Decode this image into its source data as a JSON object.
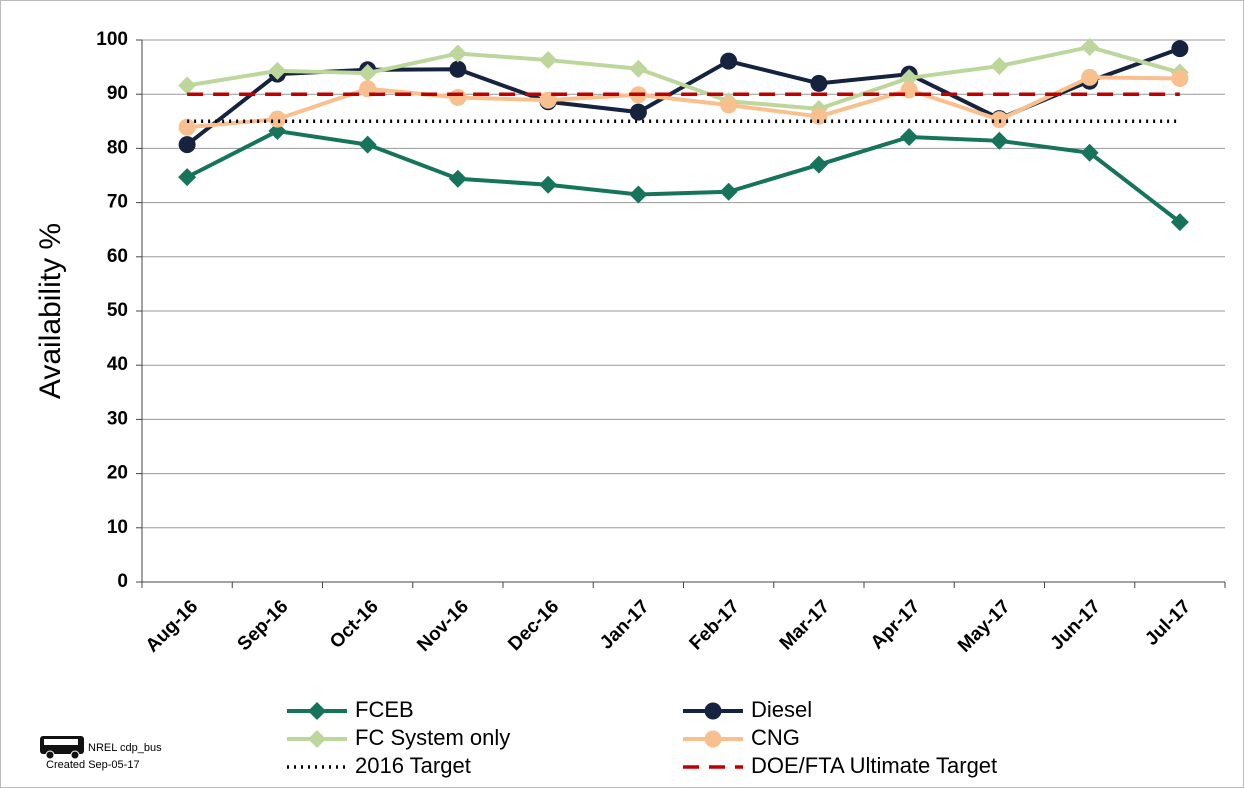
{
  "chart_data": {
    "type": "line",
    "y_label": "Availability %",
    "categories": [
      "Aug-16",
      "Sep-16",
      "Oct-16",
      "Nov-16",
      "Dec-16",
      "Jan-17",
      "Feb-17",
      "Mar-17",
      "Apr-17",
      "May-17",
      "Jun-17",
      "Jul-17"
    ],
    "series": [
      {
        "name": "FCEB",
        "color": "#16745c",
        "marker": "diamond",
        "dash": "solid",
        "values": [
          74.7,
          83.2,
          80.7,
          74.4,
          73.3,
          71.5,
          72.0,
          77.0,
          82.1,
          81.4,
          79.2,
          66.4
        ]
      },
      {
        "name": "Diesel",
        "color": "#16233f",
        "marker": "circle",
        "dash": "solid",
        "values": [
          80.7,
          93.7,
          94.5,
          94.6,
          88.6,
          86.7,
          96.1,
          92.0,
          93.7,
          85.5,
          92.4,
          98.4
        ]
      },
      {
        "name": "FC System only",
        "color": "#bcd69c",
        "marker": "diamond",
        "dash": "solid",
        "values": [
          91.6,
          94.3,
          93.9,
          97.5,
          96.3,
          94.7,
          88.7,
          87.3,
          93.0,
          95.2,
          98.7,
          94.0
        ]
      },
      {
        "name": "CNG",
        "color": "#f8bf8f",
        "marker": "circle",
        "dash": "solid",
        "values": [
          83.9,
          85.4,
          91.0,
          89.4,
          88.9,
          89.9,
          88.0,
          85.9,
          90.8,
          85.3,
          93.1,
          92.9
        ]
      },
      {
        "name": "2016 Target",
        "color": "#000000",
        "marker": "none",
        "dash": "dotted",
        "values": [
          85,
          85,
          85,
          85,
          85,
          85,
          85,
          85,
          85,
          85,
          85,
          85
        ]
      },
      {
        "name": "DOE/FTA Ultimate Target",
        "color": "#c00000",
        "marker": "none",
        "dash": "dashed",
        "values": [
          90,
          90,
          90,
          90,
          90,
          90,
          90,
          90,
          90,
          90,
          90,
          90
        ]
      }
    ],
    "ylim": [
      0,
      100
    ],
    "yticks": [
      0,
      10,
      20,
      30,
      40,
      50,
      60,
      70,
      80,
      90,
      100
    ],
    "grid": true
  },
  "footer": {
    "source": "NREL cdp_bus",
    "created": "Created Sep-05-17"
  }
}
